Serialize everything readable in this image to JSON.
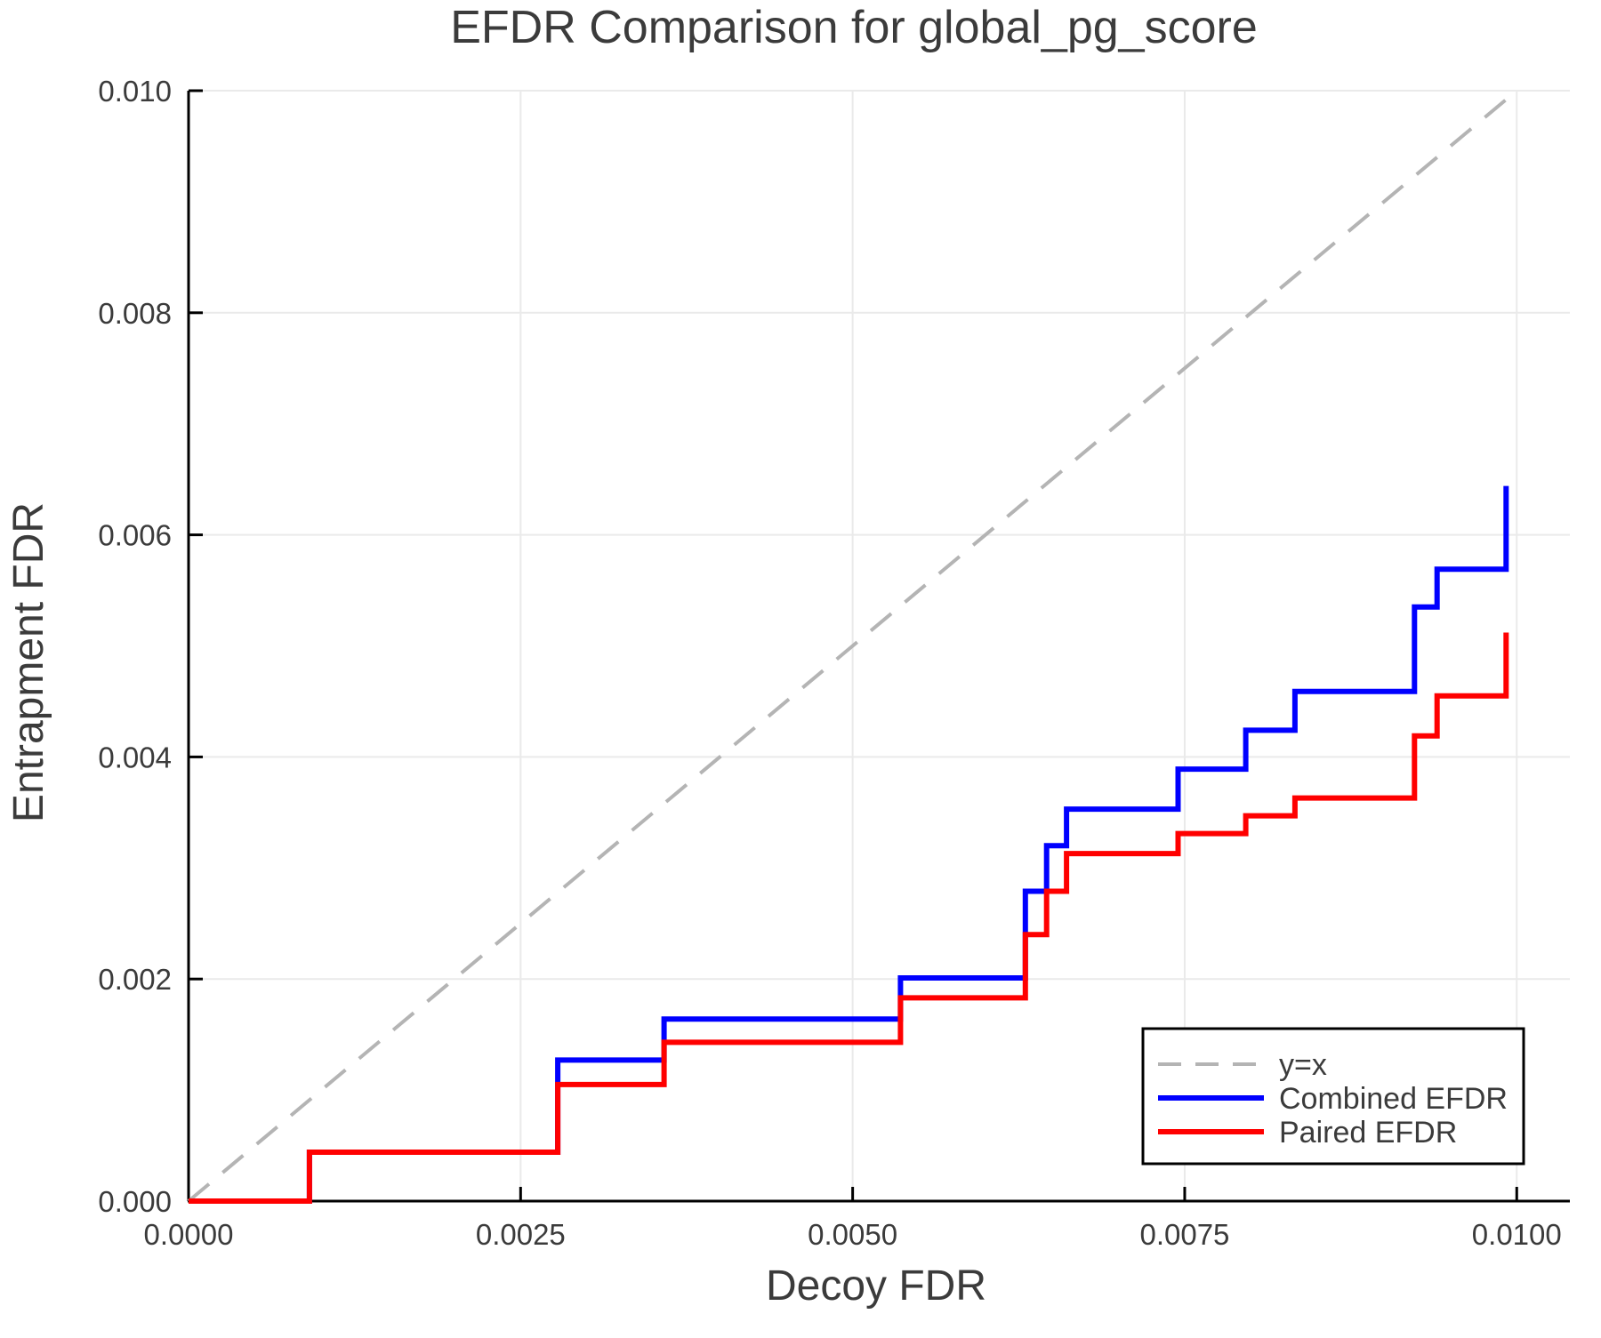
{
  "chart_data": {
    "type": "line",
    "subtype": "step-post",
    "title": "EFDR Comparison for global_pg_score",
    "xlabel": "Decoy FDR",
    "ylabel": "Entrapment FDR",
    "xlim": [
      0.0,
      0.0104
    ],
    "ylim": [
      0.0,
      0.01
    ],
    "grid": true,
    "x_ticks": [
      0.0,
      0.0025,
      0.005,
      0.0075,
      0.01
    ],
    "x_tick_labels": [
      "0.0000",
      "0.0025",
      "0.0050",
      "0.0075",
      "0.0100"
    ],
    "y_ticks": [
      0.0,
      0.002,
      0.004,
      0.006,
      0.008,
      0.01
    ],
    "y_tick_labels": [
      "0.000",
      "0.002",
      "0.004",
      "0.006",
      "0.008",
      "0.010"
    ],
    "reference_line": {
      "label": "y=x",
      "from": [
        0.0,
        0.0
      ],
      "to": [
        0.01,
        0.01
      ],
      "style": "dashed",
      "color": "#b4b4b4"
    },
    "series": [
      {
        "name": "Combined EFDR",
        "color": "#0000ff",
        "x": [
          0.0,
          0.00091,
          0.00278,
          0.00358,
          0.00536,
          0.0063,
          0.00646,
          0.00661,
          0.00745,
          0.00796,
          0.00833,
          0.00923,
          0.0094,
          0.00992
        ],
        "y": [
          0.0,
          0.00044,
          0.00127,
          0.00164,
          0.00201,
          0.00279,
          0.0032,
          0.00353,
          0.00389,
          0.00424,
          0.00459,
          0.00535,
          0.00569,
          0.00644
        ]
      },
      {
        "name": "Paired EFDR",
        "color": "#ff0000",
        "x": [
          0.0,
          0.00091,
          0.00278,
          0.00358,
          0.00536,
          0.0063,
          0.00646,
          0.00661,
          0.00745,
          0.00796,
          0.00833,
          0.00923,
          0.0094,
          0.00992
        ],
        "y": [
          0.0,
          0.00044,
          0.00105,
          0.00143,
          0.00183,
          0.0024,
          0.00279,
          0.00313,
          0.00331,
          0.00347,
          0.00363,
          0.00419,
          0.00455,
          0.00512
        ]
      }
    ],
    "legend": {
      "position": "lower right",
      "entries": [
        {
          "label": "y=x",
          "color": "#b4b4b4",
          "dashed": true
        },
        {
          "label": "Combined EFDR",
          "color": "#0000ff",
          "dashed": false
        },
        {
          "label": "Paired EFDR",
          "color": "#ff0000",
          "dashed": false
        }
      ]
    }
  }
}
